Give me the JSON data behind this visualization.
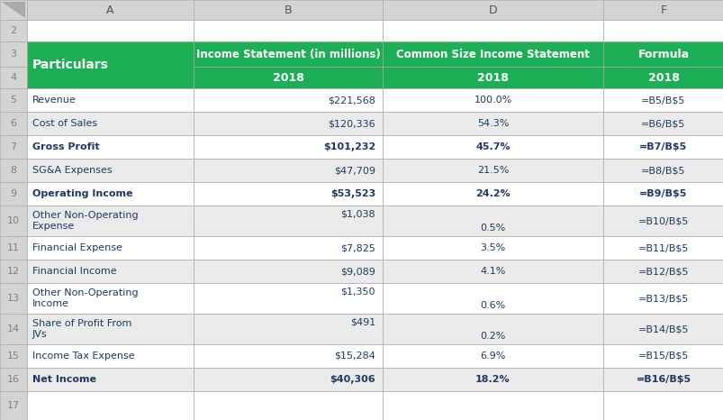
{
  "rows": [
    {
      "row": 5,
      "particulars": "Revenue",
      "income": "$221,568",
      "common": "100.0%",
      "common_bottom": false,
      "formula": "=B5/B$5",
      "bold": false
    },
    {
      "row": 6,
      "particulars": "Cost of Sales",
      "income": "$120,336",
      "common": "54.3%",
      "common_bottom": false,
      "formula": "=B6/B$5",
      "bold": false
    },
    {
      "row": 7,
      "particulars": "Gross Profit",
      "income": "$101,232",
      "common": "45.7%",
      "common_bottom": false,
      "formula": "=B7/B$5",
      "bold": true
    },
    {
      "row": 8,
      "particulars": "SG&A Expenses",
      "income": "$47,709",
      "common": "21.5%",
      "common_bottom": false,
      "formula": "=B8/B$5",
      "bold": false
    },
    {
      "row": 9,
      "particulars": "Operating Income",
      "income": "$53,523",
      "common": "24.2%",
      "common_bottom": false,
      "formula": "=B9/B$5",
      "bold": true
    },
    {
      "row": 10,
      "particulars": "Other Non-Operating\nExpense",
      "income": "$1,038",
      "common": "0.5%",
      "common_bottom": true,
      "formula": "=B10/B$5",
      "bold": false,
      "income_top": true
    },
    {
      "row": 11,
      "particulars": "Financial Expense",
      "income": "$7,825",
      "common": "3.5%",
      "common_bottom": false,
      "formula": "=B11/B$5",
      "bold": false
    },
    {
      "row": 12,
      "particulars": "Financial Income",
      "income": "$9,089",
      "common": "4.1%",
      "common_bottom": false,
      "formula": "=B12/B$5",
      "bold": false
    },
    {
      "row": 13,
      "particulars": "Other Non-Operating\nIncome",
      "income": "$1,350",
      "common": "0.6%",
      "common_bottom": true,
      "formula": "=B13/B$5",
      "bold": false,
      "income_top": true
    },
    {
      "row": 14,
      "particulars": "Share of Profit From\nJVs",
      "income": "$491",
      "common": "0.2%",
      "common_bottom": true,
      "formula": "=B14/B$5",
      "bold": false,
      "income_top": true
    },
    {
      "row": 15,
      "particulars": "Income Tax Expense",
      "income": "$15,284",
      "common": "6.9%",
      "common_bottom": false,
      "formula": "=B15/B$5",
      "bold": false
    },
    {
      "row": 16,
      "particulars": "Net Income",
      "income": "$40,306",
      "common": "18.2%",
      "common_bottom": false,
      "formula": "=B16/B$5",
      "bold": true
    }
  ],
  "green": "#1DAF55",
  "white": "#FFFFFF",
  "lgray": "#EBEBEB",
  "row_num_bg": "#D4D4D4",
  "border": "#AAAAAA",
  "dark_blue": "#1F3864",
  "text_gray": "#7F7F7F",
  "header3_b": "Income Statement (in millions)",
  "header3_d": "Common Size Income Statement",
  "header3_f": "Formula",
  "header4": "2018"
}
